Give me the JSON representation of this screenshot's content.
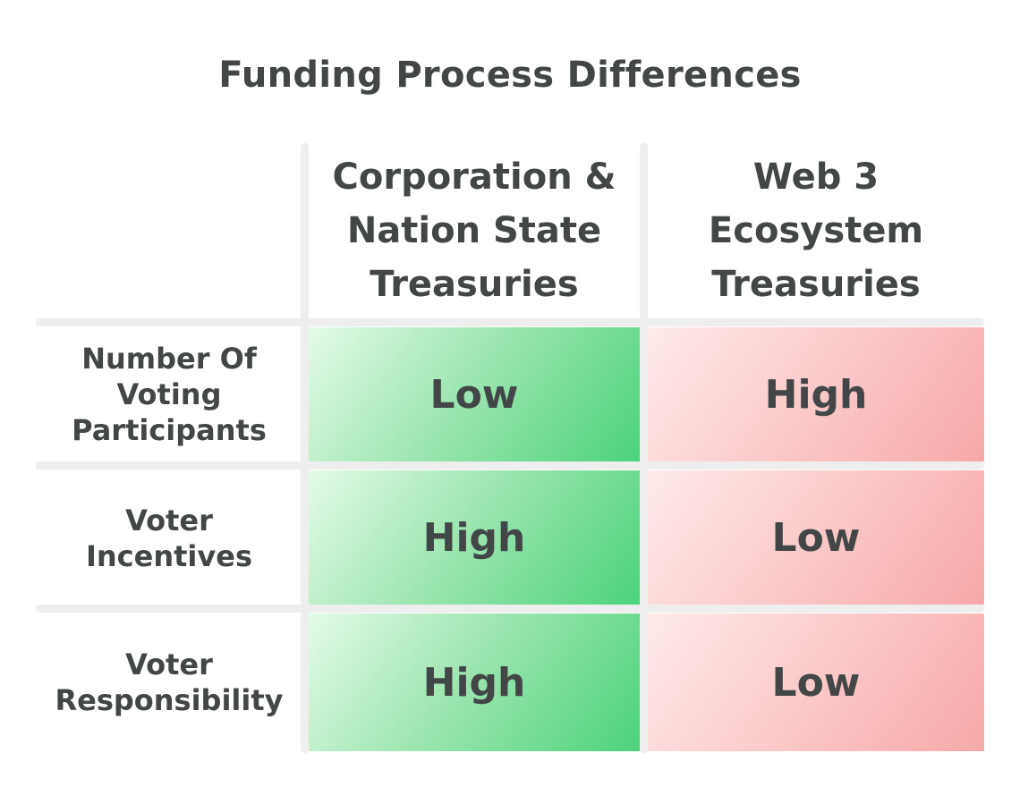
{
  "title": "Funding Process Differences",
  "columns": [
    "Corporation &\nNation State\nTreasuries",
    "Web 3\nEcosystem\nTreasuries"
  ],
  "rows": [
    {
      "label": "Number Of\nVoting\nParticipants",
      "values": [
        "Low",
        "High"
      ]
    },
    {
      "label": "Voter\nIncentives",
      "values": [
        "High",
        "Low"
      ]
    },
    {
      "label": "Voter\nResponsibility",
      "values": [
        "High",
        "Low"
      ]
    }
  ],
  "colors": {
    "text": "#424647",
    "grid_lines": "#eeeeee",
    "column_1_fill": "#4cd37a",
    "column_2_fill": "#f7a8a8"
  }
}
